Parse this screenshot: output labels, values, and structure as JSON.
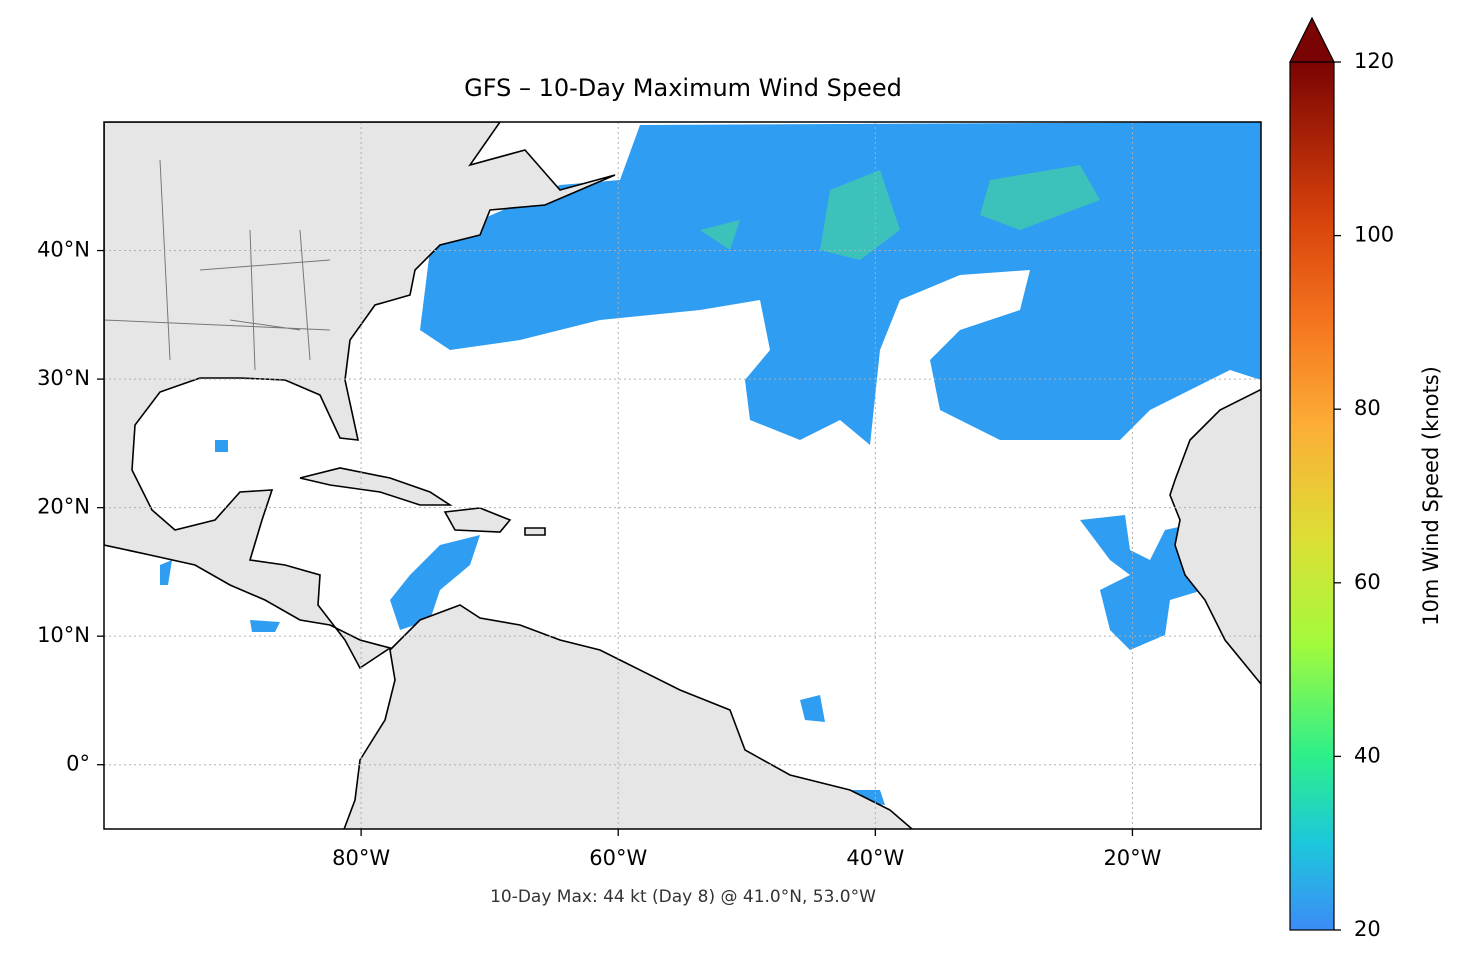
{
  "chart_data": {
    "type": "map",
    "title": "GFS – 10-Day Maximum Wind Speed",
    "annotation": "10-Day Max: 44 kt (Day 8) @ 41.0°N, 53.0°W",
    "xlim": [
      -100,
      -10
    ],
    "ylim": [
      -5,
      50
    ],
    "xticks": [
      {
        "value": -80,
        "label": "80°W"
      },
      {
        "value": -60,
        "label": "60°W"
      },
      {
        "value": -40,
        "label": "40°W"
      },
      {
        "value": -20,
        "label": "20°W"
      }
    ],
    "yticks": [
      {
        "value": 0,
        "label": "0°"
      },
      {
        "value": 10,
        "label": "10°N"
      },
      {
        "value": 20,
        "label": "20°N"
      },
      {
        "value": 30,
        "label": "30°N"
      },
      {
        "value": 40,
        "label": "40°N"
      }
    ],
    "grid": true,
    "colorbar": {
      "label": "10m Wind Speed (knots)",
      "lim": [
        20,
        120
      ],
      "ticks": [
        20,
        40,
        60,
        80,
        100,
        120
      ]
    }
  }
}
